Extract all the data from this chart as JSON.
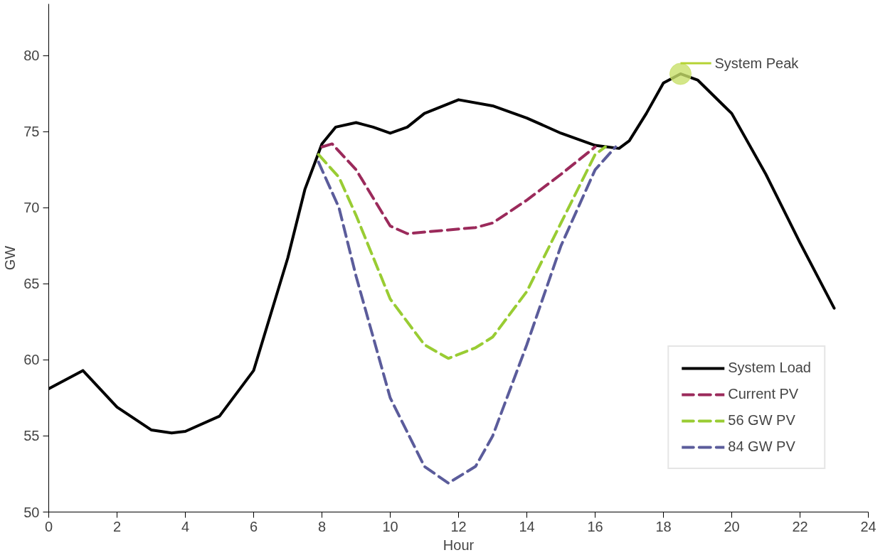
{
  "chart_data": {
    "type": "line",
    "xlabel": "Hour",
    "ylabel": "GW",
    "xlim": [
      0,
      24
    ],
    "ylim": [
      50,
      83.4
    ],
    "xticks": [
      0,
      2,
      4,
      6,
      8,
      10,
      12,
      14,
      16,
      18,
      20,
      22,
      24
    ],
    "yticks": [
      50,
      55,
      60,
      65,
      70,
      75,
      80
    ],
    "grid": false,
    "legend": "bottom right",
    "marker": "none",
    "series": [
      {
        "name": "System Load",
        "color": "#000000",
        "line_style": "solid",
        "x": [
          0,
          1,
          2,
          3,
          3.6,
          4,
          5,
          6,
          7,
          7.5,
          8,
          8.4,
          9,
          9.5,
          10,
          10.5,
          11,
          12,
          13,
          14,
          15,
          16,
          16.7,
          17,
          17.5,
          18,
          18.5,
          19,
          20,
          21,
          22,
          23
        ],
        "values": [
          58.1,
          59.3,
          56.9,
          55.4,
          55.2,
          55.3,
          56.3,
          59.3,
          66.7,
          71.2,
          74.2,
          75.3,
          75.6,
          75.3,
          74.9,
          75.3,
          76.2,
          77.1,
          76.7,
          75.9,
          74.9,
          74.1,
          73.9,
          74.4,
          76.2,
          78.2,
          78.8,
          78.4,
          76.2,
          72.2,
          67.7,
          63.4
        ]
      },
      {
        "name": "Current PV",
        "color": "#9b2a5b",
        "line_style": "dashed",
        "x": [
          8,
          8.3,
          9,
          10,
          10.5,
          11.5,
          12.5,
          13,
          14,
          15,
          16
        ],
        "values": [
          74,
          74.2,
          72.5,
          68.8,
          68.3,
          68.5,
          68.7,
          69,
          70.5,
          72.2,
          74
        ]
      },
      {
        "name": "56 GW PV",
        "color": "#99cc33",
        "line_style": "dashed",
        "x": [
          7.9,
          8.5,
          9,
          10,
          11,
          11.7,
          12.5,
          13,
          14,
          15,
          16,
          16.3
        ],
        "values": [
          73.5,
          72,
          69.5,
          64,
          61,
          60.1,
          60.8,
          61.5,
          64.5,
          69,
          73.5,
          74
        ]
      },
      {
        "name": "84 GW PV",
        "color": "#5b5c9b",
        "line_style": "dashed",
        "x": [
          7.9,
          8.5,
          9,
          10,
          11,
          11.7,
          12.5,
          13,
          14,
          15,
          16,
          16.6
        ],
        "values": [
          73,
          70,
          65.5,
          57.5,
          53,
          51.9,
          53,
          55,
          61,
          67.5,
          72.5,
          74
        ]
      }
    ],
    "annotations": [
      {
        "text": "System Peak",
        "x": 18.5,
        "y": 78.8
      }
    ]
  }
}
